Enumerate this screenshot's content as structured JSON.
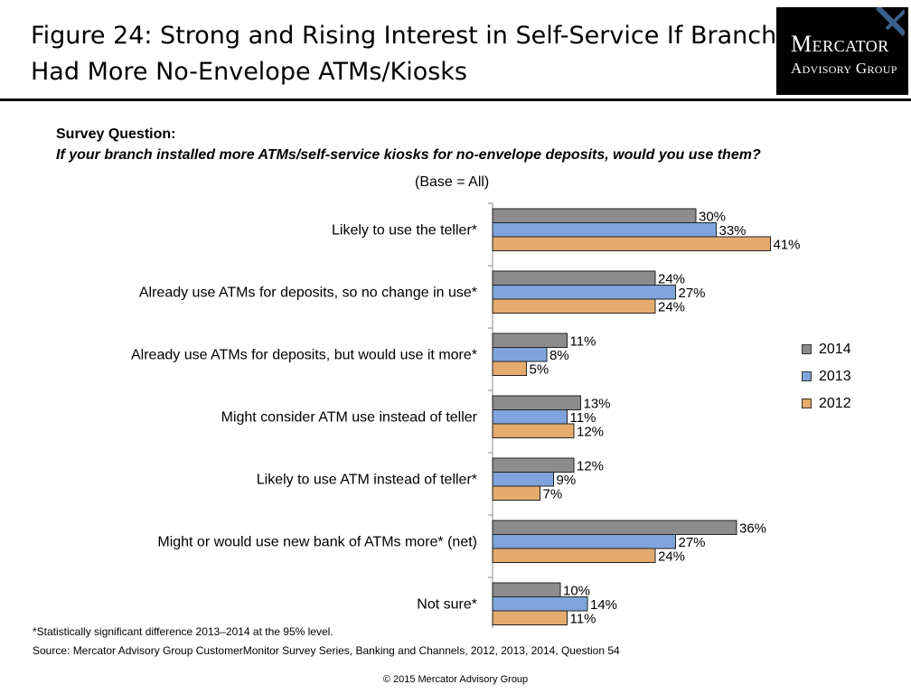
{
  "title": {
    "line1": "Figure 24: Strong and Rising Interest in Self-Service If Branch",
    "line2": "Had More No-Envelope ATMs/Kiosks"
  },
  "logo": {
    "line1": "Mercator",
    "line2": "Advisory Group"
  },
  "survey": {
    "label": "Survey Question:",
    "question": "If your branch installed more ATMs/self-service kiosks for no-envelope deposits, would you use them?",
    "base": "(Base = All)"
  },
  "chart_data": {
    "type": "bar",
    "orientation": "horizontal",
    "categories": [
      "Likely to use the teller*",
      "Already use ATMs for deposits, so no change in use*",
      "Already use ATMs for deposits, but would use it more*",
      "Might consider ATM use instead of teller",
      "Likely to use ATM  instead of teller*",
      "Might or would use new bank of ATMs more* (net)",
      "Not sure*"
    ],
    "series": [
      {
        "name": "2014",
        "color": "#8c8c8c",
        "values": [
          30,
          24,
          11,
          13,
          12,
          36,
          10
        ]
      },
      {
        "name": "2013",
        "color": "#7fa4db",
        "values": [
          33,
          27,
          8,
          11,
          9,
          27,
          14
        ]
      },
      {
        "name": "2012",
        "color": "#e4ab6d",
        "values": [
          41,
          24,
          5,
          12,
          7,
          24,
          11
        ]
      }
    ],
    "value_suffix": "%",
    "xlim": [
      0,
      45
    ],
    "grid": false,
    "legend_position": "right"
  },
  "footnote": "*Statistically significant difference 2013–2014  at the 95% level.",
  "source": "Source: Mercator Advisory Group CustomerMonitor Survey Series, Banking and Channels, 2012, 2013,  2014,  Question 54",
  "copyright": "© 2015 Mercator Advisory Group"
}
